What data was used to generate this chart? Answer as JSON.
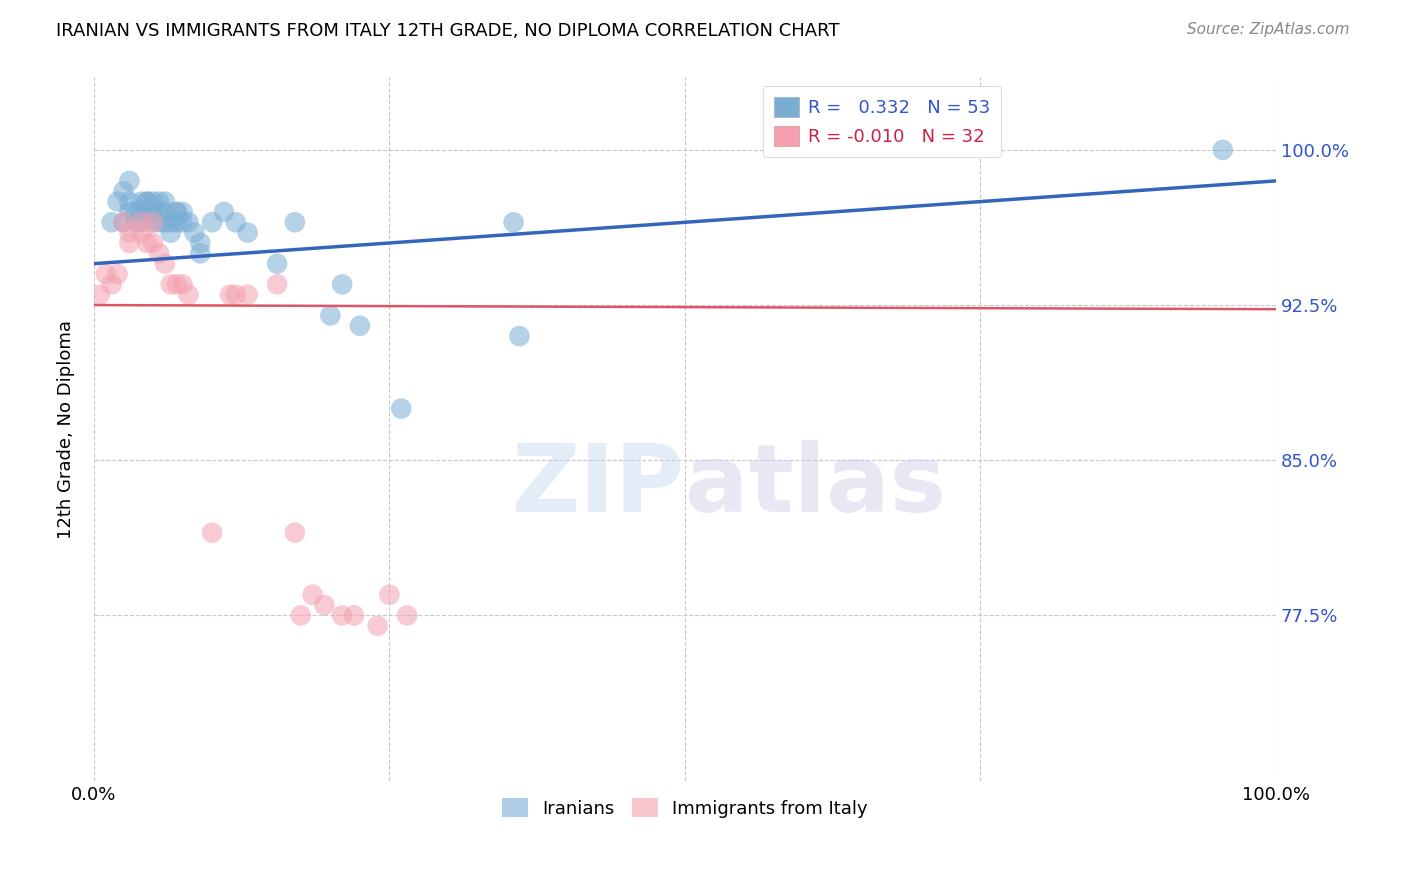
{
  "title": "IRANIAN VS IMMIGRANTS FROM ITALY 12TH GRADE, NO DIPLOMA CORRELATION CHART",
  "source": "Source: ZipAtlas.com",
  "ylabel": "12th Grade, No Diploma",
  "xlim": [
    0.0,
    1.0
  ],
  "ylim": [
    0.695,
    1.035
  ],
  "ytick_labels": [
    "77.5%",
    "85.0%",
    "92.5%",
    "100.0%"
  ],
  "ytick_vals": [
    0.775,
    0.85,
    0.925,
    1.0
  ],
  "grid_color": "#c8c8c8",
  "blue_color": "#7aadd4",
  "pink_color": "#f4a0b0",
  "trendline_blue": "#3366bb",
  "trendline_pink": "#dd5566",
  "blue_trend_x0": 0.0,
  "blue_trend_y0": 0.945,
  "blue_trend_x1": 1.0,
  "blue_trend_y1": 0.985,
  "pink_trend_x0": 0.0,
  "pink_trend_y0": 0.925,
  "pink_trend_x1": 1.0,
  "pink_trend_y1": 0.923,
  "iranians_x": [
    0.015,
    0.02,
    0.025,
    0.025,
    0.03,
    0.03,
    0.03,
    0.035,
    0.035,
    0.04,
    0.04,
    0.04,
    0.045,
    0.045,
    0.045,
    0.05,
    0.05,
    0.05,
    0.055,
    0.055,
    0.055,
    0.06,
    0.06,
    0.06,
    0.065,
    0.065,
    0.07,
    0.07,
    0.07,
    0.075,
    0.075,
    0.08,
    0.085,
    0.09,
    0.09,
    0.1,
    0.11,
    0.12,
    0.13,
    0.155,
    0.17,
    0.2,
    0.21,
    0.225,
    0.26,
    0.355,
    0.36,
    0.955
  ],
  "iranians_y": [
    0.965,
    0.975,
    0.98,
    0.965,
    0.985,
    0.975,
    0.97,
    0.97,
    0.965,
    0.975,
    0.97,
    0.965,
    0.975,
    0.975,
    0.97,
    0.975,
    0.97,
    0.965,
    0.975,
    0.97,
    0.965,
    0.975,
    0.97,
    0.965,
    0.965,
    0.96,
    0.97,
    0.97,
    0.965,
    0.97,
    0.965,
    0.965,
    0.96,
    0.955,
    0.95,
    0.965,
    0.97,
    0.965,
    0.96,
    0.945,
    0.965,
    0.92,
    0.935,
    0.915,
    0.875,
    0.965,
    0.91,
    1.0
  ],
  "italy_x": [
    0.005,
    0.01,
    0.015,
    0.02,
    0.025,
    0.03,
    0.03,
    0.04,
    0.04,
    0.045,
    0.05,
    0.05,
    0.055,
    0.06,
    0.065,
    0.07,
    0.075,
    0.08,
    0.1,
    0.115,
    0.12,
    0.13,
    0.155,
    0.17,
    0.175,
    0.185,
    0.195,
    0.21,
    0.22,
    0.24,
    0.25,
    0.265
  ],
  "italy_y": [
    0.93,
    0.94,
    0.935,
    0.94,
    0.965,
    0.96,
    0.955,
    0.965,
    0.96,
    0.955,
    0.965,
    0.955,
    0.95,
    0.945,
    0.935,
    0.935,
    0.935,
    0.93,
    0.815,
    0.93,
    0.93,
    0.93,
    0.935,
    0.815,
    0.775,
    0.785,
    0.78,
    0.775,
    0.775,
    0.77,
    0.785,
    0.775
  ]
}
